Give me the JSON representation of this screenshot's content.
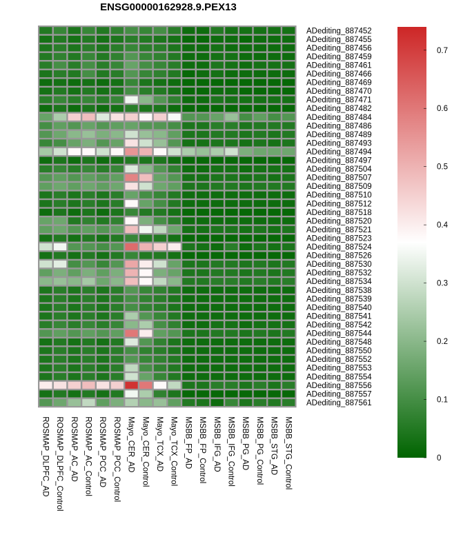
{
  "chart_data": {
    "type": "heatmap",
    "title": "ENSG00000162928.9.PEX13",
    "columns": [
      "ROSMAP_DLPFC_AD",
      "ROSMAP_DLPFC_Control",
      "ROSMAP_AC_AD",
      "ROSMAP_AC_Control",
      "ROSMAP_PCC_AD",
      "ROSMAP_PCC_Control",
      "Mayo_CER_AD",
      "Mayo_CER_Control",
      "Mayo_TCX_AD",
      "Mayo_TCX_Control",
      "MSBB_FP_AD",
      "MSBB_FP_Control",
      "MSBB_IFG_AD",
      "MSBB_IFG_Control",
      "MSBB_PG_AD",
      "MSBB_PG_Control",
      "MSBB_STG_AD",
      "MSBB_STG_Control"
    ],
    "rows": [
      "ADediting_887452",
      "ADediting_887455",
      "ADediting_887456",
      "ADediting_887459",
      "ADediting_887461",
      "ADediting_887466",
      "ADediting_887469",
      "ADediting_887470",
      "ADediting_887471",
      "ADediting_887482",
      "ADediting_887484",
      "ADediting_887486",
      "ADediting_887489",
      "ADediting_887493",
      "ADediting_887494",
      "ADediting_887497",
      "ADediting_887504",
      "ADediting_887507",
      "ADediting_887509",
      "ADediting_887510",
      "ADediting_887512",
      "ADediting_887518",
      "ADediting_887520",
      "ADediting_887521",
      "ADediting_887523",
      "ADediting_887524",
      "ADediting_887526",
      "ADediting_887530",
      "ADediting_887532",
      "ADediting_887534",
      "ADediting_887538",
      "ADediting_887539",
      "ADediting_887540",
      "ADediting_887541",
      "ADediting_887542",
      "ADediting_887544",
      "ADediting_887548",
      "ADediting_887550",
      "ADediting_887552",
      "ADediting_887553",
      "ADediting_887554",
      "ADediting_887556",
      "ADediting_887557",
      "ADediting_887561"
    ],
    "values": [
      [
        0.05,
        0.08,
        0.04,
        0.08,
        0.05,
        0.07,
        0.1,
        0.08,
        0.1,
        0.06,
        0.02,
        0.02,
        0.05,
        0.03,
        0.03,
        0.03,
        0.03,
        0.03
      ],
      [
        0.03,
        0.05,
        0.03,
        0.05,
        0.03,
        0.04,
        0.06,
        0.05,
        0.04,
        0.03,
        0.01,
        0.01,
        0.02,
        0.02,
        0.01,
        0.02,
        0.02,
        0.02
      ],
      [
        0.04,
        0.06,
        0.04,
        0.06,
        0.04,
        0.06,
        0.08,
        0.06,
        0.06,
        0.04,
        0.02,
        0.02,
        0.03,
        0.02,
        0.02,
        0.02,
        0.02,
        0.02
      ],
      [
        0.05,
        0.07,
        0.05,
        0.08,
        0.05,
        0.07,
        0.12,
        0.08,
        0.07,
        0.05,
        0.02,
        0.02,
        0.03,
        0.03,
        0.02,
        0.02,
        0.02,
        0.02
      ],
      [
        0.06,
        0.1,
        0.06,
        0.1,
        0.06,
        0.08,
        0.15,
        0.1,
        0.08,
        0.06,
        0.02,
        0.02,
        0.04,
        0.03,
        0.02,
        0.03,
        0.03,
        0.03
      ],
      [
        0.04,
        0.06,
        0.05,
        0.1,
        0.05,
        0.06,
        0.12,
        0.08,
        0.07,
        0.05,
        0.01,
        0.02,
        0.03,
        0.02,
        0.02,
        0.02,
        0.02,
        0.02
      ],
      [
        0.02,
        0.03,
        0.02,
        0.03,
        0.02,
        0.03,
        0.08,
        0.04,
        0.03,
        0.02,
        0.01,
        0.01,
        0.01,
        0.01,
        0.01,
        0.01,
        0.01,
        0.01
      ],
      [
        0.03,
        0.05,
        0.03,
        0.05,
        0.03,
        0.04,
        0.1,
        0.06,
        0.05,
        0.03,
        0.01,
        0.01,
        0.02,
        0.02,
        0.01,
        0.01,
        0.01,
        0.01
      ],
      [
        0.06,
        0.08,
        0.06,
        0.08,
        0.06,
        0.08,
        0.35,
        0.2,
        0.12,
        0.07,
        0.02,
        0.02,
        0.04,
        0.03,
        0.03,
        0.03,
        0.03,
        0.03
      ],
      [
        0.02,
        0.04,
        0.02,
        0.04,
        0.02,
        0.03,
        0.06,
        0.04,
        0.04,
        0.02,
        0.01,
        0.01,
        0.01,
        0.01,
        0.01,
        0.01,
        0.01,
        0.01
      ],
      [
        0.15,
        0.25,
        0.45,
        0.48,
        0.32,
        0.42,
        0.45,
        0.38,
        0.45,
        0.36,
        0.12,
        0.12,
        0.15,
        0.22,
        0.1,
        0.14,
        0.1,
        0.12
      ],
      [
        0.1,
        0.14,
        0.12,
        0.15,
        0.12,
        0.14,
        0.15,
        0.12,
        0.12,
        0.1,
        0.04,
        0.04,
        0.06,
        0.06,
        0.04,
        0.05,
        0.05,
        0.05
      ],
      [
        0.12,
        0.16,
        0.2,
        0.22,
        0.18,
        0.2,
        0.3,
        0.22,
        0.2,
        0.14,
        0.04,
        0.04,
        0.05,
        0.05,
        0.04,
        0.05,
        0.04,
        0.05
      ],
      [
        0.08,
        0.1,
        0.15,
        0.18,
        0.12,
        0.15,
        0.42,
        0.3,
        0.22,
        0.12,
        0.03,
        0.03,
        0.04,
        0.04,
        0.03,
        0.04,
        0.03,
        0.04
      ],
      [
        0.24,
        0.3,
        0.38,
        0.38,
        0.3,
        0.38,
        0.55,
        0.5,
        0.38,
        0.3,
        0.25,
        0.22,
        0.25,
        0.3,
        0.18,
        0.16,
        0.16,
        0.16
      ],
      [
        0.02,
        0.04,
        0.02,
        0.04,
        0.02,
        0.03,
        0.05,
        0.04,
        0.04,
        0.02,
        0.01,
        0.01,
        0.01,
        0.01,
        0.01,
        0.01,
        0.01,
        0.01
      ],
      [
        0.06,
        0.08,
        0.06,
        0.08,
        0.06,
        0.08,
        0.32,
        0.2,
        0.12,
        0.07,
        0.02,
        0.02,
        0.03,
        0.03,
        0.02,
        0.03,
        0.03,
        0.03
      ],
      [
        0.12,
        0.14,
        0.12,
        0.14,
        0.12,
        0.14,
        0.58,
        0.48,
        0.15,
        0.12,
        0.03,
        0.03,
        0.04,
        0.04,
        0.03,
        0.04,
        0.03,
        0.04
      ],
      [
        0.14,
        0.16,
        0.14,
        0.16,
        0.14,
        0.16,
        0.42,
        0.3,
        0.16,
        0.14,
        0.04,
        0.04,
        0.05,
        0.05,
        0.04,
        0.05,
        0.05,
        0.05
      ],
      [
        0.04,
        0.06,
        0.04,
        0.06,
        0.04,
        0.06,
        0.15,
        0.1,
        0.08,
        0.05,
        0.02,
        0.02,
        0.02,
        0.02,
        0.02,
        0.02,
        0.02,
        0.02
      ],
      [
        0.04,
        0.06,
        0.04,
        0.06,
        0.04,
        0.06,
        0.38,
        0.15,
        0.1,
        0.05,
        0.02,
        0.02,
        0.02,
        0.02,
        0.02,
        0.02,
        0.02,
        0.02
      ],
      [
        0.02,
        0.04,
        0.02,
        0.04,
        0.02,
        0.04,
        0.08,
        0.05,
        0.05,
        0.03,
        0.01,
        0.01,
        0.01,
        0.01,
        0.01,
        0.01,
        0.01,
        0.01
      ],
      [
        0.15,
        0.16,
        0.05,
        0.07,
        0.05,
        0.07,
        0.38,
        0.18,
        0.1,
        0.06,
        0.02,
        0.02,
        0.02,
        0.02,
        0.02,
        0.02,
        0.02,
        0.02
      ],
      [
        0.14,
        0.16,
        0.12,
        0.14,
        0.12,
        0.14,
        0.48,
        0.35,
        0.28,
        0.16,
        0.03,
        0.03,
        0.04,
        0.04,
        0.03,
        0.04,
        0.03,
        0.04
      ],
      [
        0.03,
        0.05,
        0.03,
        0.05,
        0.03,
        0.05,
        0.08,
        0.05,
        0.05,
        0.03,
        0.01,
        0.01,
        0.01,
        0.01,
        0.01,
        0.01,
        0.01,
        0.01
      ],
      [
        0.3,
        0.35,
        0.12,
        0.12,
        0.1,
        0.12,
        0.62,
        0.5,
        0.45,
        0.4,
        0.04,
        0.03,
        0.02,
        0.06,
        0.02,
        0.04,
        0.03,
        0.04
      ],
      [
        0.03,
        0.05,
        0.03,
        0.05,
        0.03,
        0.05,
        0.08,
        0.05,
        0.05,
        0.03,
        0.01,
        0.01,
        0.01,
        0.01,
        0.01,
        0.01,
        0.01,
        0.01
      ],
      [
        0.3,
        0.33,
        0.1,
        0.12,
        0.08,
        0.12,
        0.52,
        0.4,
        0.3,
        0.15,
        0.04,
        0.04,
        0.05,
        0.05,
        0.04,
        0.05,
        0.04,
        0.05
      ],
      [
        0.14,
        0.18,
        0.14,
        0.18,
        0.14,
        0.18,
        0.5,
        0.38,
        0.18,
        0.15,
        0.04,
        0.04,
        0.05,
        0.05,
        0.04,
        0.05,
        0.04,
        0.05
      ],
      [
        0.2,
        0.22,
        0.2,
        0.24,
        0.16,
        0.2,
        0.48,
        0.38,
        0.28,
        0.2,
        0.05,
        0.05,
        0.06,
        0.06,
        0.05,
        0.06,
        0.05,
        0.06
      ],
      [
        0.04,
        0.06,
        0.04,
        0.06,
        0.04,
        0.06,
        0.12,
        0.08,
        0.07,
        0.05,
        0.02,
        0.02,
        0.02,
        0.02,
        0.02,
        0.02,
        0.02,
        0.02
      ],
      [
        0.04,
        0.06,
        0.04,
        0.06,
        0.04,
        0.06,
        0.1,
        0.07,
        0.06,
        0.04,
        0.02,
        0.02,
        0.02,
        0.02,
        0.02,
        0.02,
        0.02,
        0.02
      ],
      [
        0.04,
        0.06,
        0.04,
        0.06,
        0.04,
        0.06,
        0.1,
        0.07,
        0.06,
        0.04,
        0.02,
        0.02,
        0.02,
        0.02,
        0.02,
        0.02,
        0.02,
        0.02
      ],
      [
        0.04,
        0.06,
        0.04,
        0.06,
        0.04,
        0.06,
        0.25,
        0.12,
        0.08,
        0.05,
        0.02,
        0.02,
        0.02,
        0.02,
        0.02,
        0.02,
        0.02,
        0.02
      ],
      [
        0.06,
        0.08,
        0.06,
        0.08,
        0.06,
        0.08,
        0.2,
        0.25,
        0.1,
        0.07,
        0.02,
        0.02,
        0.03,
        0.03,
        0.02,
        0.03,
        0.03,
        0.03
      ],
      [
        0.12,
        0.14,
        0.12,
        0.14,
        0.12,
        0.14,
        0.6,
        0.4,
        0.14,
        0.12,
        0.04,
        0.04,
        0.05,
        0.05,
        0.04,
        0.05,
        0.04,
        0.05
      ],
      [
        0.03,
        0.05,
        0.03,
        0.05,
        0.03,
        0.05,
        0.32,
        0.12,
        0.07,
        0.04,
        0.02,
        0.02,
        0.02,
        0.02,
        0.02,
        0.02,
        0.02,
        0.02
      ],
      [
        0.04,
        0.06,
        0.04,
        0.06,
        0.04,
        0.06,
        0.1,
        0.07,
        0.06,
        0.04,
        0.02,
        0.02,
        0.02,
        0.02,
        0.02,
        0.02,
        0.02,
        0.02
      ],
      [
        0.04,
        0.06,
        0.04,
        0.06,
        0.04,
        0.06,
        0.12,
        0.08,
        0.07,
        0.05,
        0.02,
        0.02,
        0.02,
        0.02,
        0.02,
        0.02,
        0.02,
        0.02
      ],
      [
        0.04,
        0.06,
        0.04,
        0.06,
        0.04,
        0.06,
        0.28,
        0.1,
        0.07,
        0.05,
        0.02,
        0.02,
        0.02,
        0.02,
        0.02,
        0.02,
        0.02,
        0.02
      ],
      [
        0.04,
        0.06,
        0.04,
        0.06,
        0.04,
        0.06,
        0.3,
        0.15,
        0.08,
        0.05,
        0.02,
        0.02,
        0.02,
        0.02,
        0.02,
        0.02,
        0.02,
        0.02
      ],
      [
        0.4,
        0.42,
        0.45,
        0.48,
        0.42,
        0.45,
        0.72,
        0.6,
        0.38,
        0.28,
        0.04,
        0.04,
        0.06,
        0.06,
        0.04,
        0.06,
        0.04,
        0.06
      ],
      [
        0.03,
        0.05,
        0.03,
        0.05,
        0.03,
        0.05,
        0.35,
        0.25,
        0.07,
        0.04,
        0.01,
        0.01,
        0.01,
        0.01,
        0.01,
        0.01,
        0.01,
        0.01
      ],
      [
        0.12,
        0.16,
        0.22,
        0.28,
        0.14,
        0.18,
        0.26,
        0.2,
        0.22,
        0.14,
        0.05,
        0.04,
        0.02,
        0.08,
        0.04,
        0.06,
        0.05,
        0.06
      ]
    ],
    "colorscale": {
      "min": 0,
      "mid": 0.37,
      "max": 0.74,
      "low_color": "#006400",
      "mid_color": "#ffffff",
      "high_color": "#cd2626"
    },
    "colorbar_ticks": [
      0,
      0.1,
      0.2,
      0.3,
      0.4,
      0.5,
      0.6,
      0.7
    ],
    "colorbar_tick_labels": [
      "0",
      "0.1",
      "0.2",
      "0.3",
      "0.4",
      "0.5",
      "0.6",
      "0.7"
    ],
    "cell_border_color": "#999999"
  }
}
